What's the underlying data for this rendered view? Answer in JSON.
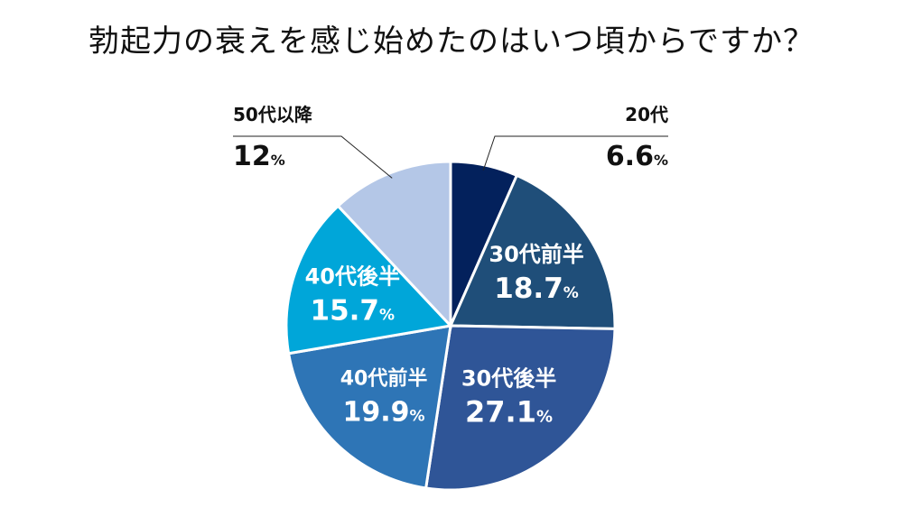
{
  "chart_data": {
    "type": "pie",
    "title": "勃起力の衰えを感じ始めたのはいつ頃からですか？",
    "unit": "%",
    "slices": [
      {
        "label": "20代",
        "value": 6.6,
        "value_text": "6.6",
        "color": "#03215c"
      },
      {
        "label": "30代前半",
        "value": 18.7,
        "value_text": "18.7",
        "color": "#1f4e79"
      },
      {
        "label": "30代後半",
        "value": 27.1,
        "value_text": "27.1",
        "color": "#2f5597"
      },
      {
        "label": "40代前半",
        "value": 19.9,
        "value_text": "19.9",
        "color": "#2e75b6"
      },
      {
        "label": "40代後半",
        "value": 15.7,
        "value_text": "15.7",
        "color": "#00a6d9"
      },
      {
        "label": "50代以降",
        "value": 12,
        "value_text": "12",
        "color": "#b4c7e7"
      }
    ]
  }
}
